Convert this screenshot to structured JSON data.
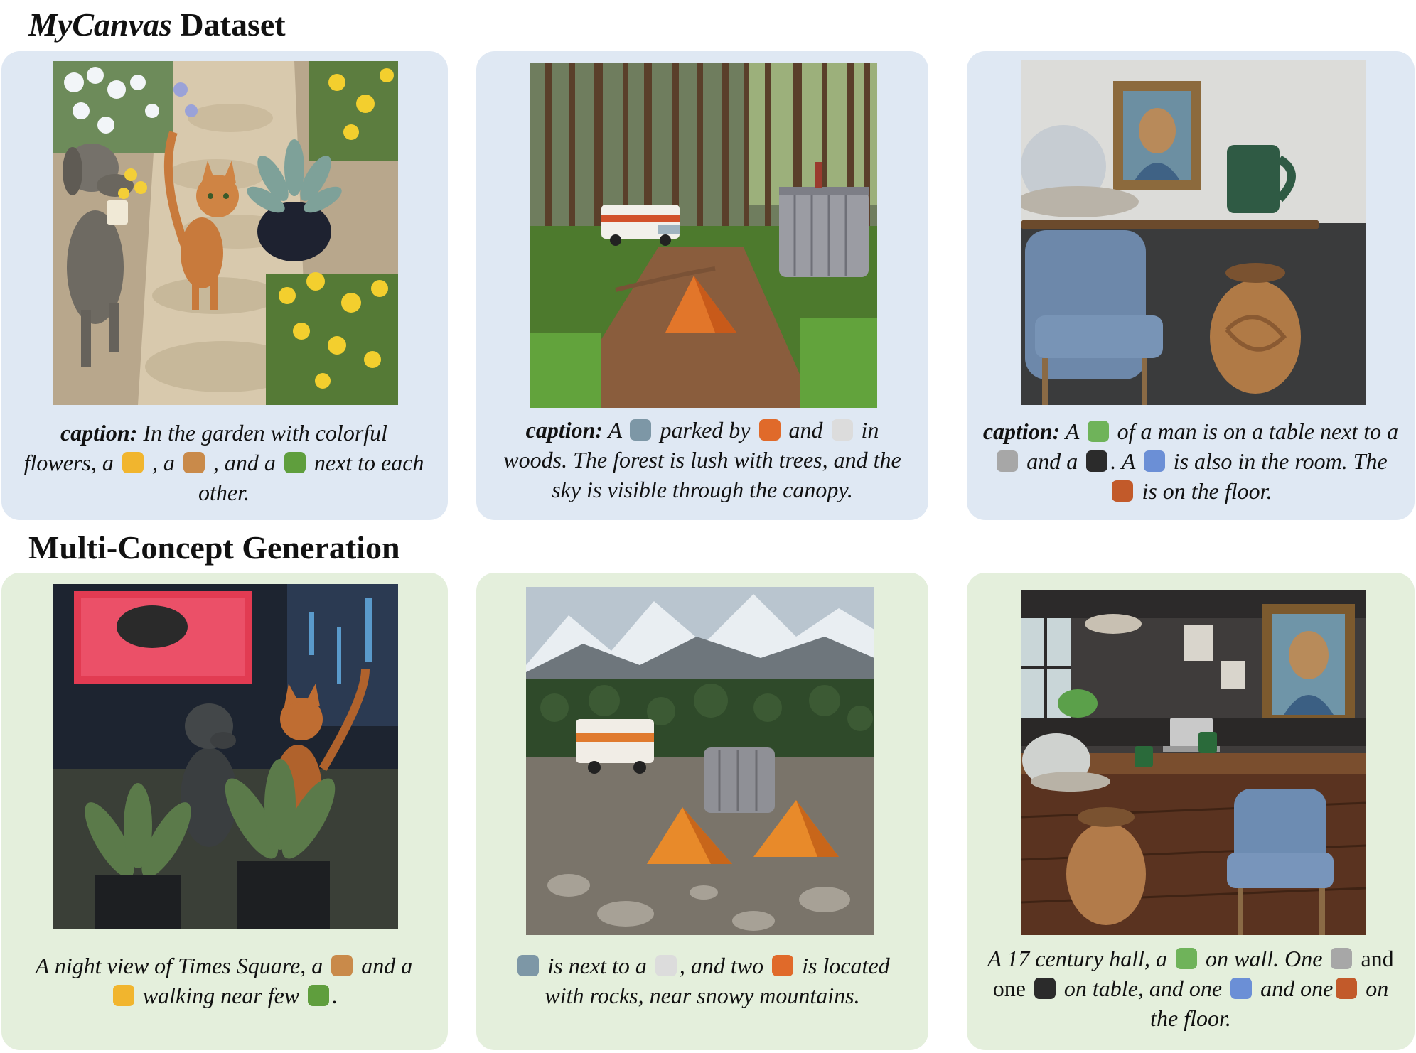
{
  "sections": {
    "dataset_title_italic": "MyCanvas",
    "dataset_title_rest": " Dataset",
    "generation_title": "Multi-Concept Generation"
  },
  "dataset": [
    {
      "lead": "caption:",
      "parts": [
        " In the garden with colorful flowers, a ",
        {
          "icon": "cat-icon"
        },
        " , a ",
        {
          "icon": "dog-icon"
        },
        " , and a ",
        {
          "icon": "potted-plant-icon"
        },
        " next to each other."
      ]
    },
    {
      "lead": "caption:",
      "parts": [
        "  A ",
        {
          "icon": "rv-icon"
        },
        " parked by ",
        {
          "icon": "tent-icon"
        },
        " and ",
        {
          "icon": "toilet-icon"
        },
        " in woods. The forest is lush with trees, and the sky is visible through the canopy."
      ]
    },
    {
      "lead": "caption:",
      "parts": [
        "  A ",
        {
          "icon": "painting-icon"
        },
        " of a man is on a table next to a ",
        {
          "icon": "mug-icon"
        },
        " and a ",
        {
          "icon": "hat-icon"
        },
        ". A ",
        {
          "icon": "chair-icon"
        },
        " is also in the room. The ",
        {
          "icon": "vase-icon"
        },
        " is on the floor."
      ]
    }
  ],
  "generation": [
    {
      "parts": [
        "A night view of Times Square, a ",
        {
          "icon": "dog-icon"
        },
        " and a ",
        {
          "icon": "cat-icon"
        },
        " walking near few ",
        {
          "icon": "potted-plant-icon"
        },
        "."
      ]
    },
    {
      "parts": [
        {
          "icon": "rv-icon"
        },
        "  is next to a ",
        {
          "icon": "toilet-icon"
        },
        ", and two ",
        {
          "icon": "tent-icon"
        },
        " is located with rocks, near snowy mountains."
      ]
    },
    {
      "parts": [
        "A 17 century hall, a ",
        {
          "icon": "painting-icon"
        },
        " on wall. One ",
        {
          "icon": "mug-icon"
        },
        " ",
        {
          "upright": "and one"
        },
        " ",
        {
          "icon": "hat-icon"
        },
        " on table, and one ",
        {
          "icon": "chair-icon"
        },
        " and one",
        {
          "icon": "vase-icon"
        },
        " on the floor."
      ]
    }
  ],
  "icon_colors": {
    "cat-icon": "#f1b52e",
    "dog-icon": "#c98a4a",
    "potted-plant-icon": "#5f9e3d",
    "rv-icon": "#7d97a6",
    "tent-icon": "#e06a2a",
    "toilet-icon": "#dcdcdc",
    "painting-icon": "#6fb35a",
    "mug-icon": "#a7a7a7",
    "hat-icon": "#2b2b2b",
    "chair-icon": "#6b8fd6",
    "vase-icon": "#c25a2a"
  }
}
